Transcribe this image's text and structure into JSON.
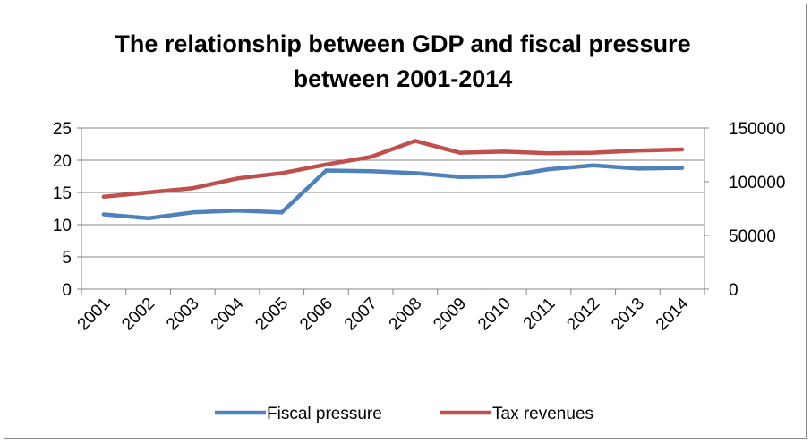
{
  "chart_data": {
    "type": "line",
    "title": "The relationship between GDP and fiscal pressure between 2001-2014",
    "title_lines": [
      "The relationship between GDP and fiscal pressure",
      "between 2001-2014"
    ],
    "categories": [
      "2001",
      "2002",
      "2003",
      "2004",
      "2005",
      "2006",
      "2007",
      "2008",
      "2009",
      "2010",
      "2011",
      "2012",
      "2013",
      "2014"
    ],
    "series": [
      {
        "name": "Fiscal pressure",
        "axis": "left",
        "color": "#4F81BD",
        "values": [
          11.6,
          11.0,
          11.9,
          12.2,
          11.9,
          18.4,
          18.3,
          18.0,
          17.4,
          17.5,
          18.6,
          19.2,
          18.7,
          18.8
        ]
      },
      {
        "name": "Tax revenues",
        "axis": "right",
        "color": "#C0504D",
        "values": [
          86000,
          90000,
          94000,
          103000,
          108000,
          116000,
          123000,
          138000,
          127000,
          128000,
          126500,
          127000,
          129000,
          130000
        ]
      }
    ],
    "y_left": {
      "ylim": [
        0,
        25
      ],
      "ticks": [
        "0",
        "5",
        "10",
        "15",
        "20",
        "25"
      ]
    },
    "y_right": {
      "ylim": [
        0,
        150000
      ],
      "ticks": [
        "0",
        "50000",
        "100000",
        "150000"
      ]
    },
    "grid": true,
    "legend_position": "bottom"
  }
}
